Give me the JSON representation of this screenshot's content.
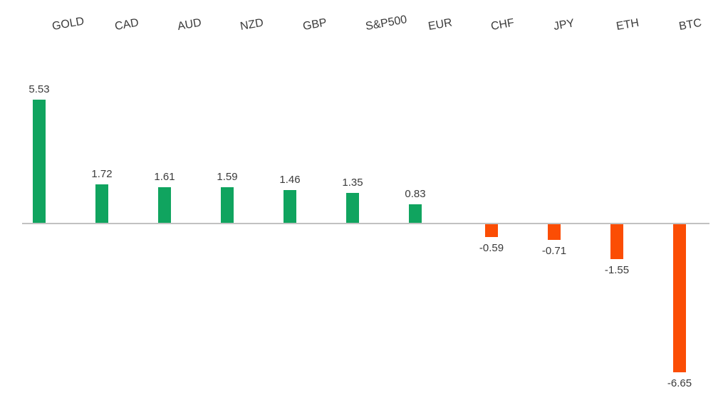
{
  "chart_data": {
    "type": "bar",
    "title": "",
    "xlabel": "",
    "ylabel": "",
    "categories": [
      "GOLD",
      "CAD",
      "AUD",
      "NZD",
      "GBP",
      "S&P500",
      "EUR",
      "CHF",
      "JPY",
      "ETH",
      "BTC"
    ],
    "values": [
      5.53,
      1.72,
      1.61,
      1.59,
      1.46,
      1.35,
      0.83,
      -0.59,
      -0.71,
      -1.55,
      -6.65
    ],
    "value_labels": [
      "5.53",
      "1.72",
      "1.61",
      "1.59",
      "1.46",
      "1.35",
      "0.83",
      "-0.59",
      "-0.71",
      "-1.55",
      "-6.65"
    ],
    "ylim": [
      -7,
      6
    ],
    "grid": false,
    "legend": false,
    "colors": {
      "positive": "#10A45F",
      "negative": "#FB4D04",
      "axis_line": "#C1C1C1",
      "label_text": "#3A3A3A",
      "background": "#FFFFFF"
    },
    "layout": {
      "category_labels_position": "top",
      "category_label_rotation_deg": -10,
      "value_labels_position": "outside-end",
      "baseline": 0
    }
  }
}
